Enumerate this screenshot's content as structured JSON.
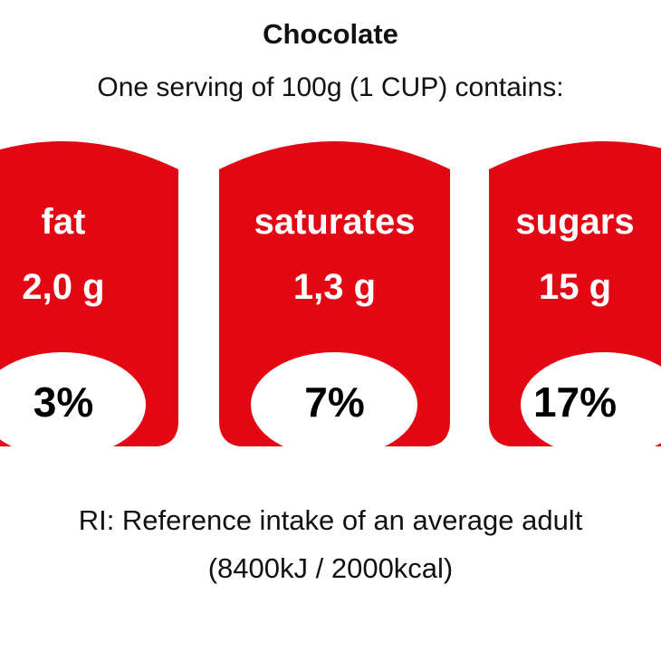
{
  "title": "Chocolate",
  "subtitle": "One serving of 100g (1 CUP) contains:",
  "badge_color": "#e30613",
  "nutrients": [
    {
      "label": "fat",
      "amount": "2,0 g",
      "percent": "3%"
    },
    {
      "label": "saturates",
      "amount": "1,3 g",
      "percent": "7%"
    },
    {
      "label": "sugars",
      "amount": "15 g",
      "percent": "17%"
    }
  ],
  "footer": {
    "reference": "RI: Reference intake of an average adult",
    "energy": "(8400kJ / 2000kcal)"
  }
}
